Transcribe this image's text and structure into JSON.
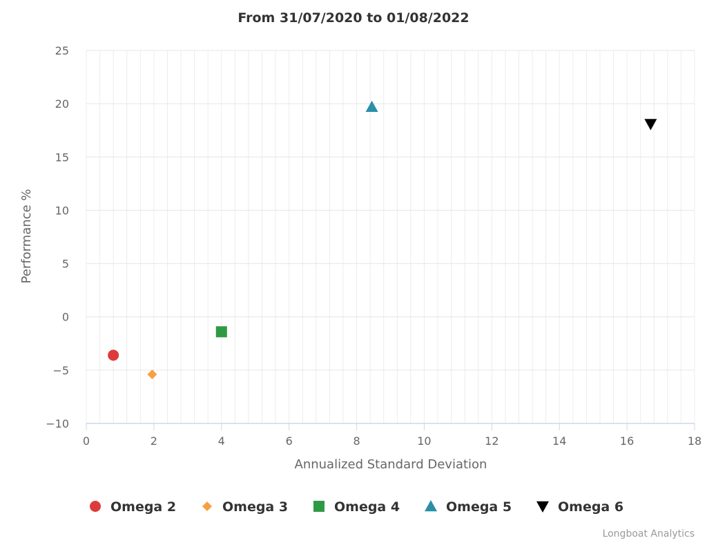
{
  "chart_data": {
    "type": "scatter",
    "title": "From 31/07/2020 to 01/08/2022",
    "xlabel": "Annualized Standard Deviation",
    "ylabel": "Performance %",
    "xlim": [
      0,
      18
    ],
    "ylim": [
      -10,
      25
    ],
    "x_ticks": [
      0,
      2,
      4,
      6,
      8,
      10,
      12,
      14,
      16,
      18
    ],
    "y_ticks": [
      25,
      20,
      15,
      10,
      5,
      0,
      -5,
      -10
    ],
    "x_tick_labels": [
      "0",
      "2",
      "4",
      "6",
      "8",
      "10",
      "12",
      "14",
      "16",
      "18"
    ],
    "y_tick_labels": [
      "25",
      "20",
      "15",
      "10",
      "5",
      "0",
      "−5",
      "−10"
    ],
    "grid": true,
    "legend_position": "bottom",
    "series": [
      {
        "name": "Omega 2",
        "marker": "circle",
        "color": "#dd3b3b",
        "points": [
          {
            "x": 0.8,
            "y": -3.6
          }
        ]
      },
      {
        "name": "Omega 3",
        "marker": "diamond",
        "color": "#f7a040",
        "points": [
          {
            "x": 1.95,
            "y": -5.4
          }
        ]
      },
      {
        "name": "Omega 4",
        "marker": "square",
        "color": "#2e9a45",
        "points": [
          {
            "x": 4.0,
            "y": -1.4
          }
        ]
      },
      {
        "name": "Omega 5",
        "marker": "triangle-up",
        "color": "#2a8fa8",
        "points": [
          {
            "x": 8.45,
            "y": 19.7
          }
        ]
      },
      {
        "name": "Omega 6",
        "marker": "triangle-down",
        "color": "#000000",
        "points": [
          {
            "x": 16.7,
            "y": 18.1
          }
        ]
      }
    ],
    "credit": "Longboat Analytics"
  }
}
